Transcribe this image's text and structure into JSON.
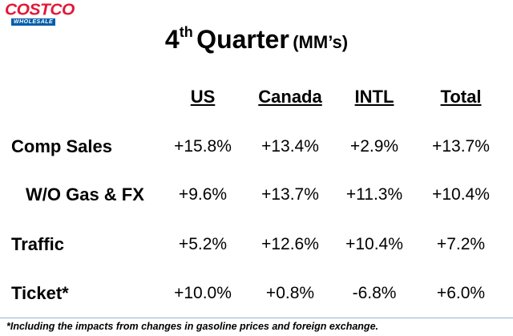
{
  "logo": {
    "name": "COSTCO",
    "tagline": "WHOLESALE"
  },
  "title": {
    "number": "4",
    "suffix": "th",
    "main": "Quarter",
    "unit": "(MM’s)"
  },
  "table": {
    "headers": [
      "US",
      "Canada",
      "INTL",
      "Total"
    ],
    "rows": [
      {
        "label": "Comp Sales",
        "values": [
          "+15.8%",
          "+13.4%",
          "+2.9%",
          "+13.7%"
        ]
      },
      {
        "label": "W/O Gas & FX",
        "values": [
          "+9.6%",
          "+13.7%",
          "+11.3%",
          "+10.4%"
        ]
      },
      {
        "label": "Traffic",
        "values": [
          "+5.2%",
          "+12.6%",
          "+10.4%",
          "+7.2%"
        ]
      },
      {
        "label": "Ticket*",
        "values": [
          "+10.0%",
          "+0.8%",
          "-6.8%",
          "+6.0%"
        ]
      }
    ]
  },
  "footnote": "*Including the impacts from changes in gasoline prices and foreign exchange."
}
